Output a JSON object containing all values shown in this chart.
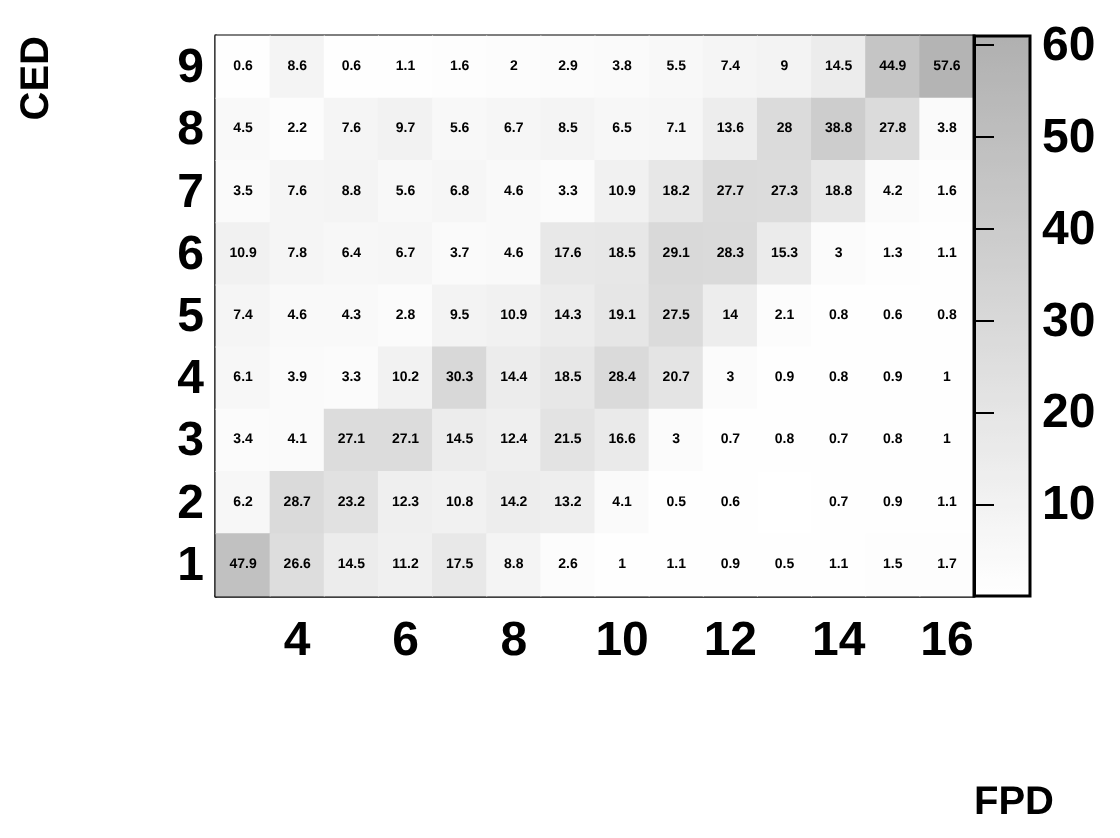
{
  "chart_data": {
    "type": "heatmap",
    "xlabel": "FPD",
    "ylabel": "CED",
    "categories": [
      null,
      "4",
      null,
      "6",
      null,
      "8",
      null,
      "10",
      null,
      "12",
      null,
      "14",
      null,
      "16"
    ],
    "y_categories": [
      "9",
      "8",
      "7",
      "6",
      "5",
      "4",
      "3",
      "2",
      "1"
    ],
    "cells": [
      [
        0.6,
        8.6,
        0.6,
        1.1,
        1.6,
        2.0,
        2.9,
        3.8,
        5.5,
        7.4,
        9.0,
        14.5,
        44.9,
        57.6
      ],
      [
        4.5,
        2.2,
        7.6,
        9.7,
        5.6,
        6.7,
        8.5,
        6.5,
        7.1,
        13.6,
        28.0,
        38.8,
        27.8,
        3.8
      ],
      [
        3.5,
        7.6,
        8.8,
        5.6,
        6.8,
        4.6,
        3.3,
        10.9,
        18.2,
        27.7,
        27.3,
        18.8,
        4.2,
        1.6
      ],
      [
        10.9,
        7.8,
        6.4,
        6.7,
        3.7,
        4.6,
        17.6,
        18.5,
        29.1,
        28.3,
        15.3,
        3.0,
        1.3,
        1.1
      ],
      [
        7.4,
        4.6,
        4.3,
        2.8,
        9.5,
        10.9,
        14.3,
        19.1,
        27.5,
        14.0,
        2.1,
        0.8,
        0.6,
        0.8
      ],
      [
        6.1,
        3.9,
        3.3,
        10.2,
        30.3,
        14.4,
        18.5,
        28.4,
        20.7,
        3.0,
        0.9,
        0.8,
        0.9,
        1.0
      ],
      [
        3.4,
        4.1,
        27.1,
        27.1,
        14.5,
        12.4,
        21.5,
        16.6,
        3.0,
        0.7,
        0.8,
        0.7,
        0.8,
        1.0
      ],
      [
        6.2,
        28.7,
        23.2,
        12.3,
        10.8,
        14.2,
        13.2,
        4.1,
        0.5,
        0.6,
        null,
        0.7,
        0.9,
        1.1
      ],
      [
        47.9,
        26.6,
        14.5,
        11.2,
        17.5,
        8.8,
        2.6,
        1.0,
        1.1,
        0.9,
        0.5,
        1.1,
        1.5,
        1.7
      ]
    ],
    "clim": [
      0,
      61
    ],
    "cticks": [
      10,
      20,
      30,
      40,
      50,
      60
    ],
    "data_labels": true
  }
}
